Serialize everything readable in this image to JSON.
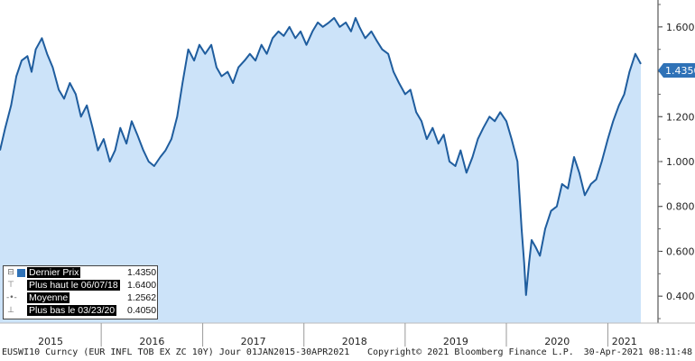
{
  "chart_data": {
    "type": "area",
    "series_name": "EUSWI10 Curncy",
    "colors": {
      "line": "#1f5d9e",
      "fill": "#cce3f9",
      "last_price_badge": "#2f72b7"
    },
    "ylim": [
      0.28,
      1.72
    ],
    "yticks": [
      0.4,
      0.6,
      0.8,
      1.0,
      1.2,
      1.4,
      1.6
    ],
    "ytick_labels": [
      "0.400",
      "0.600",
      "0.800",
      "1.000",
      "1.200",
      "1.400",
      "1.600"
    ],
    "xlim": [
      "2015-01-01",
      "2021-04-30"
    ],
    "x_tick_labels": [
      "2015",
      "2016",
      "2017",
      "2018",
      "2019",
      "2020",
      "2021"
    ],
    "x": [
      "2015-01-01",
      "2015-01-20",
      "2015-02-10",
      "2015-03-01",
      "2015-03-20",
      "2015-04-10",
      "2015-04-25",
      "2015-05-10",
      "2015-06-01",
      "2015-06-20",
      "2015-07-10",
      "2015-08-01",
      "2015-08-20",
      "2015-09-10",
      "2015-10-01",
      "2015-10-20",
      "2015-11-10",
      "2015-12-01",
      "2015-12-20",
      "2016-01-10",
      "2016-02-01",
      "2016-02-20",
      "2016-03-10",
      "2016-04-01",
      "2016-04-20",
      "2016-05-10",
      "2016-06-01",
      "2016-06-20",
      "2016-07-10",
      "2016-08-01",
      "2016-08-20",
      "2016-09-10",
      "2016-10-01",
      "2016-10-20",
      "2016-11-10",
      "2016-12-01",
      "2016-12-20",
      "2017-01-10",
      "2017-02-01",
      "2017-02-20",
      "2017-03-10",
      "2017-04-01",
      "2017-04-20",
      "2017-05-10",
      "2017-06-01",
      "2017-06-20",
      "2017-07-10",
      "2017-08-01",
      "2017-08-20",
      "2017-09-10",
      "2017-10-01",
      "2017-10-20",
      "2017-11-10",
      "2017-12-01",
      "2017-12-20",
      "2018-01-10",
      "2018-02-01",
      "2018-02-20",
      "2018-03-10",
      "2018-04-01",
      "2018-04-20",
      "2018-05-10",
      "2018-06-01",
      "2018-06-20",
      "2018-07-06",
      "2018-07-20",
      "2018-08-10",
      "2018-09-01",
      "2018-09-20",
      "2018-10-10",
      "2018-11-01",
      "2018-11-20",
      "2018-12-10",
      "2019-01-01",
      "2019-01-20",
      "2019-02-10",
      "2019-03-01",
      "2019-03-20",
      "2019-04-10",
      "2019-05-01",
      "2019-05-20",
      "2019-06-10",
      "2019-07-01",
      "2019-07-20",
      "2019-08-10",
      "2019-09-01",
      "2019-09-20",
      "2019-10-10",
      "2019-11-01",
      "2019-11-20",
      "2019-12-10",
      "2020-01-01",
      "2020-01-20",
      "2020-02-10",
      "2020-02-25",
      "2020-03-05",
      "2020-03-12",
      "2020-03-23",
      "2020-04-01",
      "2020-04-15",
      "2020-05-01",
      "2020-05-20",
      "2020-06-10",
      "2020-07-01",
      "2020-07-20",
      "2020-08-10",
      "2020-09-01",
      "2020-09-20",
      "2020-10-10",
      "2020-11-01",
      "2020-11-20",
      "2020-12-10",
      "2021-01-01",
      "2021-01-20",
      "2021-02-10",
      "2021-03-01",
      "2021-03-20",
      "2021-04-10",
      "2021-04-30"
    ],
    "y": [
      1.05,
      1.15,
      1.25,
      1.38,
      1.45,
      1.47,
      1.4,
      1.5,
      1.55,
      1.48,
      1.42,
      1.32,
      1.28,
      1.35,
      1.3,
      1.2,
      1.25,
      1.15,
      1.05,
      1.1,
      1.0,
      1.05,
      1.15,
      1.08,
      1.18,
      1.12,
      1.05,
      1.0,
      0.98,
      1.02,
      1.05,
      1.1,
      1.2,
      1.35,
      1.5,
      1.45,
      1.52,
      1.48,
      1.52,
      1.42,
      1.38,
      1.4,
      1.35,
      1.42,
      1.45,
      1.48,
      1.45,
      1.52,
      1.48,
      1.55,
      1.58,
      1.56,
      1.6,
      1.55,
      1.58,
      1.52,
      1.58,
      1.62,
      1.6,
      1.62,
      1.64,
      1.6,
      1.62,
      1.58,
      1.64,
      1.6,
      1.55,
      1.58,
      1.54,
      1.5,
      1.48,
      1.4,
      1.35,
      1.3,
      1.32,
      1.22,
      1.18,
      1.1,
      1.15,
      1.08,
      1.12,
      1.0,
      0.98,
      1.05,
      0.95,
      1.02,
      1.1,
      1.15,
      1.2,
      1.18,
      1.22,
      1.18,
      1.1,
      1.0,
      0.7,
      0.55,
      0.405,
      0.55,
      0.65,
      0.62,
      0.58,
      0.7,
      0.78,
      0.8,
      0.9,
      0.88,
      1.02,
      0.95,
      0.85,
      0.9,
      0.92,
      1.0,
      1.1,
      1.18,
      1.25,
      1.3,
      1.4,
      1.48,
      1.435
    ]
  },
  "last_price_badge": "1.4350",
  "legend": {
    "rows": [
      {
        "label": "Dernier Prix",
        "value": "1.4350"
      },
      {
        "label": "Plus haut le 06/07/18",
        "value": "1.6400"
      },
      {
        "label": "Moyenne",
        "value": "1.2562"
      },
      {
        "label": "Plus bas le 03/23/20",
        "value": "0.4050"
      }
    ]
  },
  "footer": {
    "security": "EUSWI10 Curncy (EUR INFL TOB EX ZC 10Y)  Jour 01JAN2015-30APR2021",
    "copyright": "Copyright© 2021 Bloomberg Finance L.P.",
    "timestamp": "30-Apr-2021 08:11:48"
  }
}
